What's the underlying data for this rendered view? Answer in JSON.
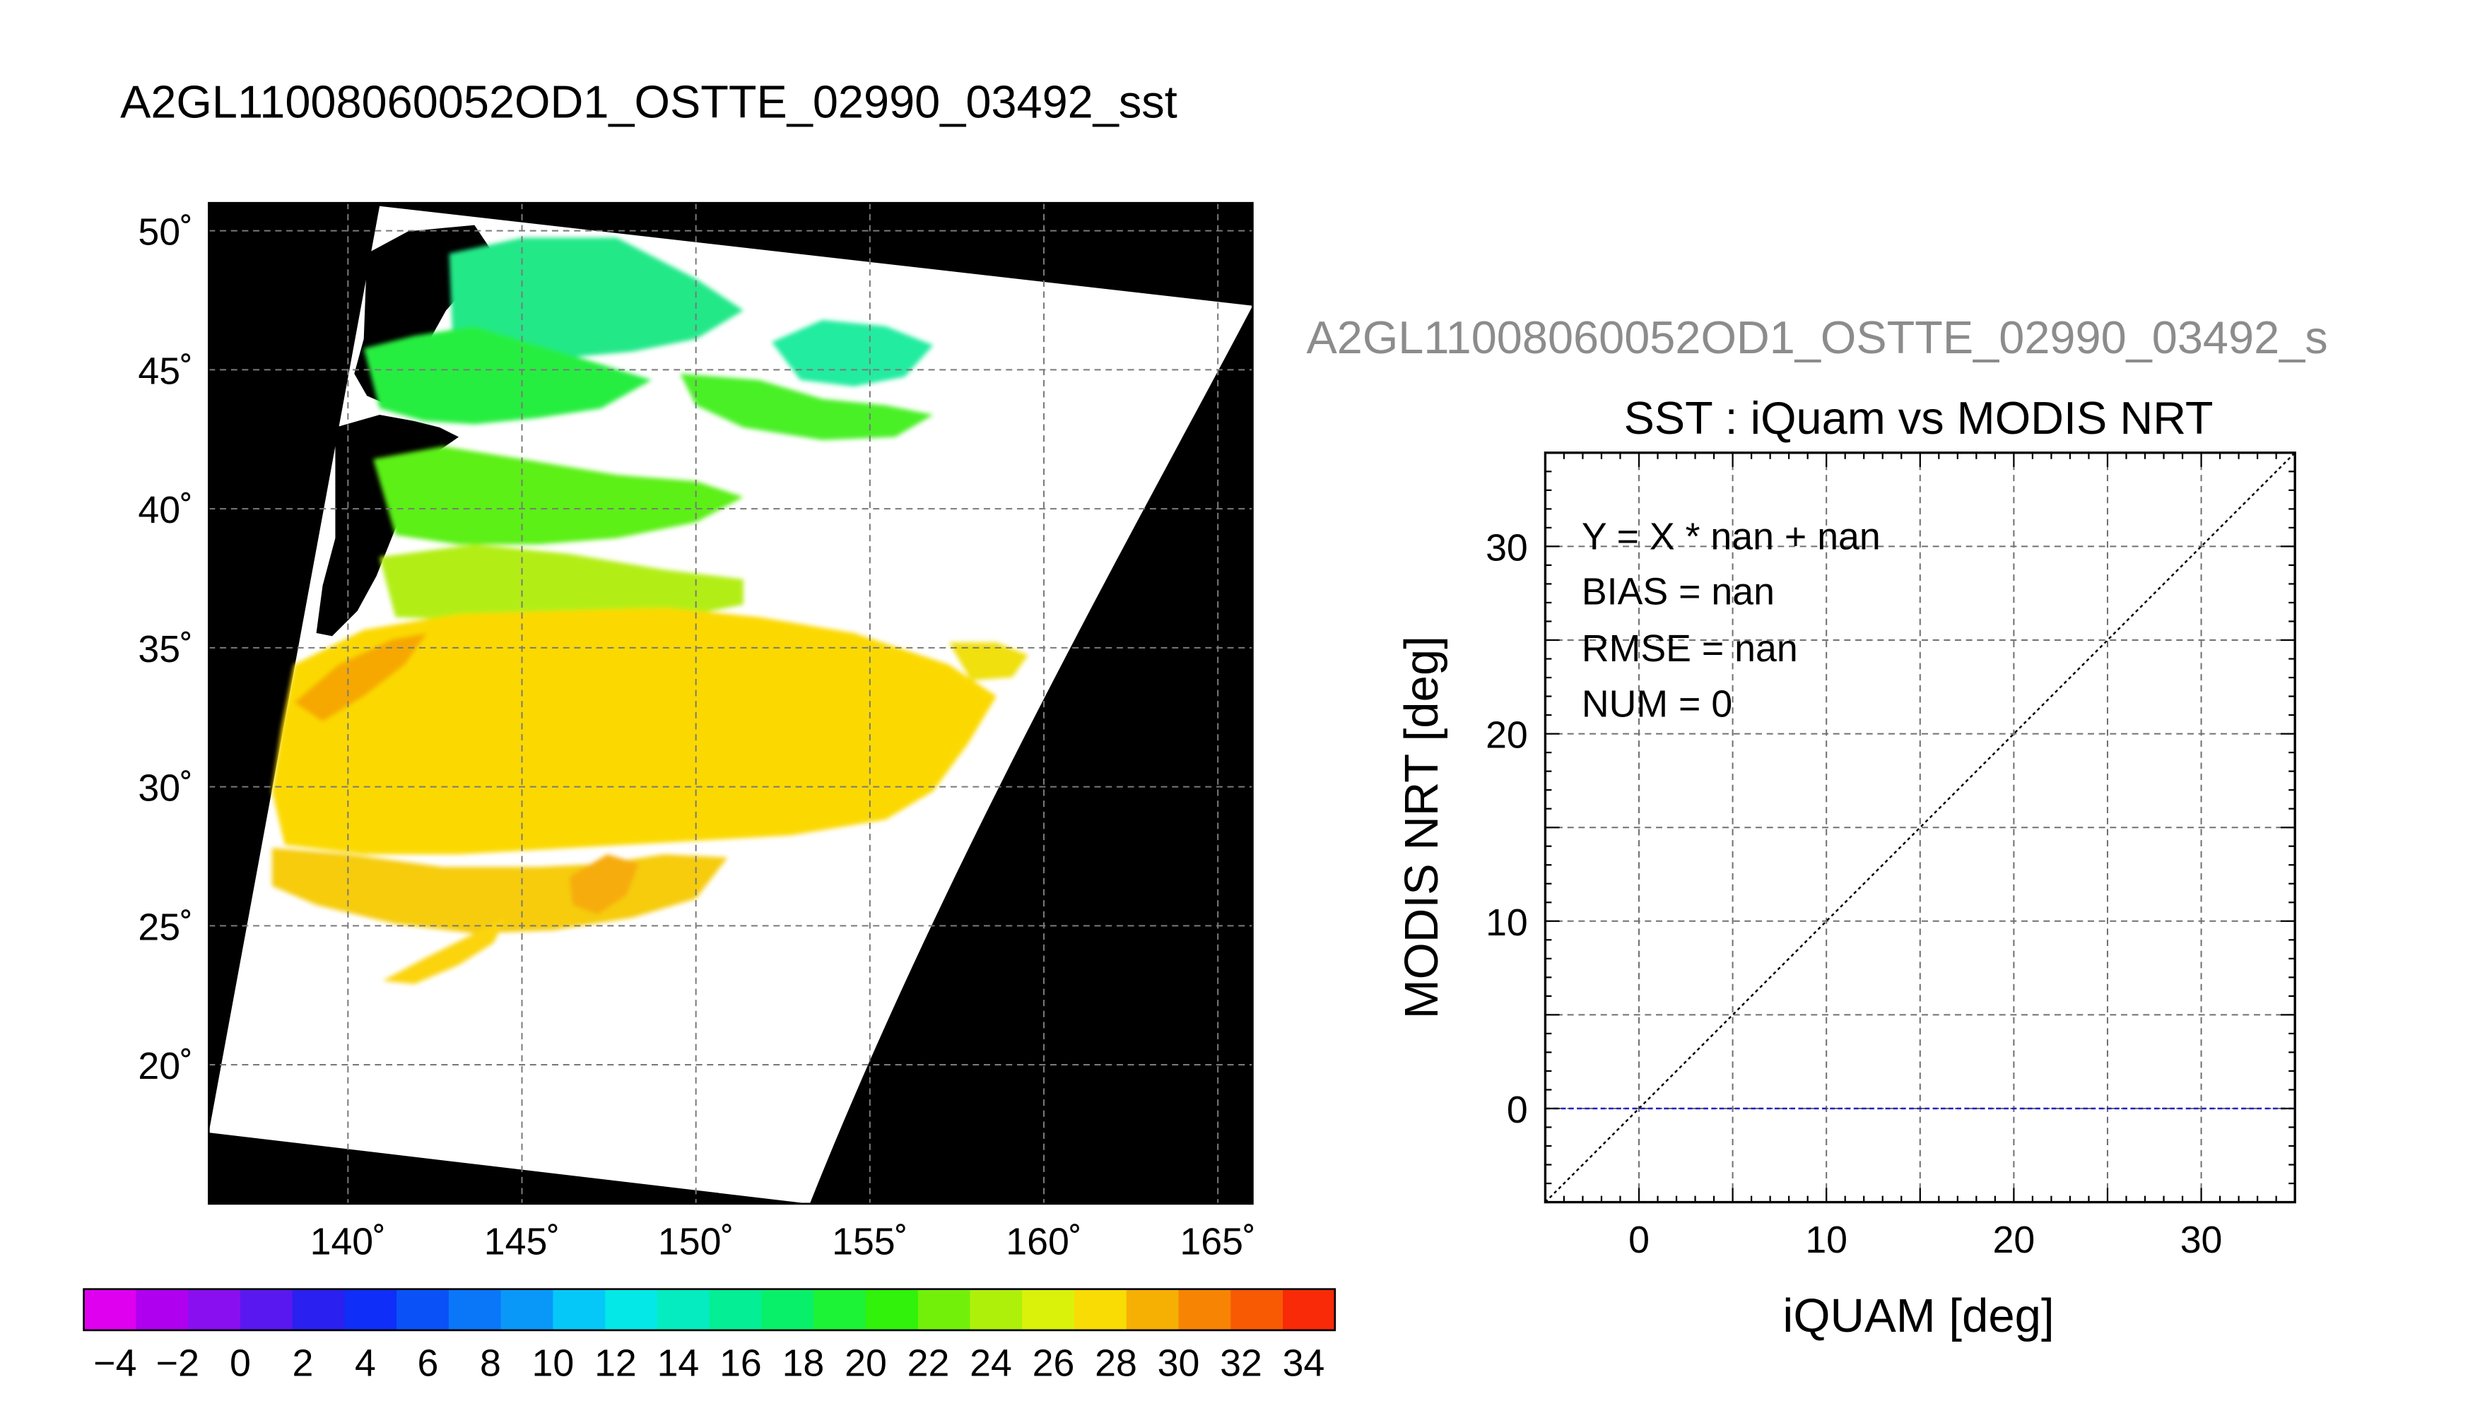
{
  "page": {
    "title": "A2GL11008060052OD1_OSTTE_02990_03492_sst"
  },
  "chart_data": [
    {
      "type": "heatmap",
      "title": "A2GL11008060052OD1_OSTTE_02990_03492_sst",
      "x_ticks": [
        "140˚",
        "145˚",
        "150˚",
        "155˚",
        "160˚",
        "165˚"
      ],
      "x_tick_values": [
        140,
        145,
        150,
        155,
        160,
        165
      ],
      "y_ticks": [
        "50˚",
        "45˚",
        "40˚",
        "35˚",
        "30˚",
        "25˚",
        "20˚"
      ],
      "y_tick_values": [
        50,
        45,
        40,
        35,
        30,
        25,
        20
      ],
      "xlim": [
        136,
        166
      ],
      "ylim": [
        15,
        51
      ],
      "grid": true,
      "colorbar": {
        "tick_labels": [
          "−4",
          "−2",
          "0",
          "2",
          "4",
          "6",
          "8",
          "10",
          "12",
          "14",
          "16",
          "18",
          "20",
          "22",
          "24",
          "26",
          "28",
          "30",
          "32",
          "34"
        ],
        "range": [
          -5,
          35
        ],
        "step": 2,
        "colors": [
          "#e000f0",
          "#b000f0",
          "#8a0ff0",
          "#5a18f0",
          "#2a20f0",
          "#0f2ef8",
          "#0a52f8",
          "#0a76f8",
          "#0a98f8",
          "#06c8f8",
          "#04e8e8",
          "#04ecc0",
          "#04ee96",
          "#08f06a",
          "#1cf236",
          "#30f20a",
          "#72f00a",
          "#aef00a",
          "#daf20a",
          "#f8dc04",
          "#f6b004",
          "#f88404",
          "#f85a04",
          "#f82a08"
        ]
      }
    },
    {
      "type": "scatter",
      "file_label": "A2GL11008060052OD1_OSTTE_02990_03492_s",
      "title": "SST : iQuam vs MODIS NRT",
      "xlabel": "iQUAM [deg]",
      "ylabel": "MODIS NRT [deg]",
      "xlim": [
        -5,
        35
      ],
      "ylim": [
        -5,
        35
      ],
      "x_ticks": [
        "0",
        "10",
        "20",
        "30"
      ],
      "x_tick_values": [
        0,
        10,
        20,
        30
      ],
      "y_ticks": [
        "0",
        "10",
        "20",
        "30"
      ],
      "y_tick_values": [
        0,
        10,
        20,
        30
      ],
      "grid": true,
      "points": [],
      "reference_line": {
        "slope": 1,
        "intercept": 0,
        "color": "#000000"
      },
      "bias_line": {
        "y": 0,
        "color": "#2020c0"
      },
      "stats": {
        "fit": "Y = X * nan + nan",
        "bias": "BIAS = nan",
        "rmse": "RMSE = nan",
        "num": "NUM = 0"
      }
    }
  ]
}
